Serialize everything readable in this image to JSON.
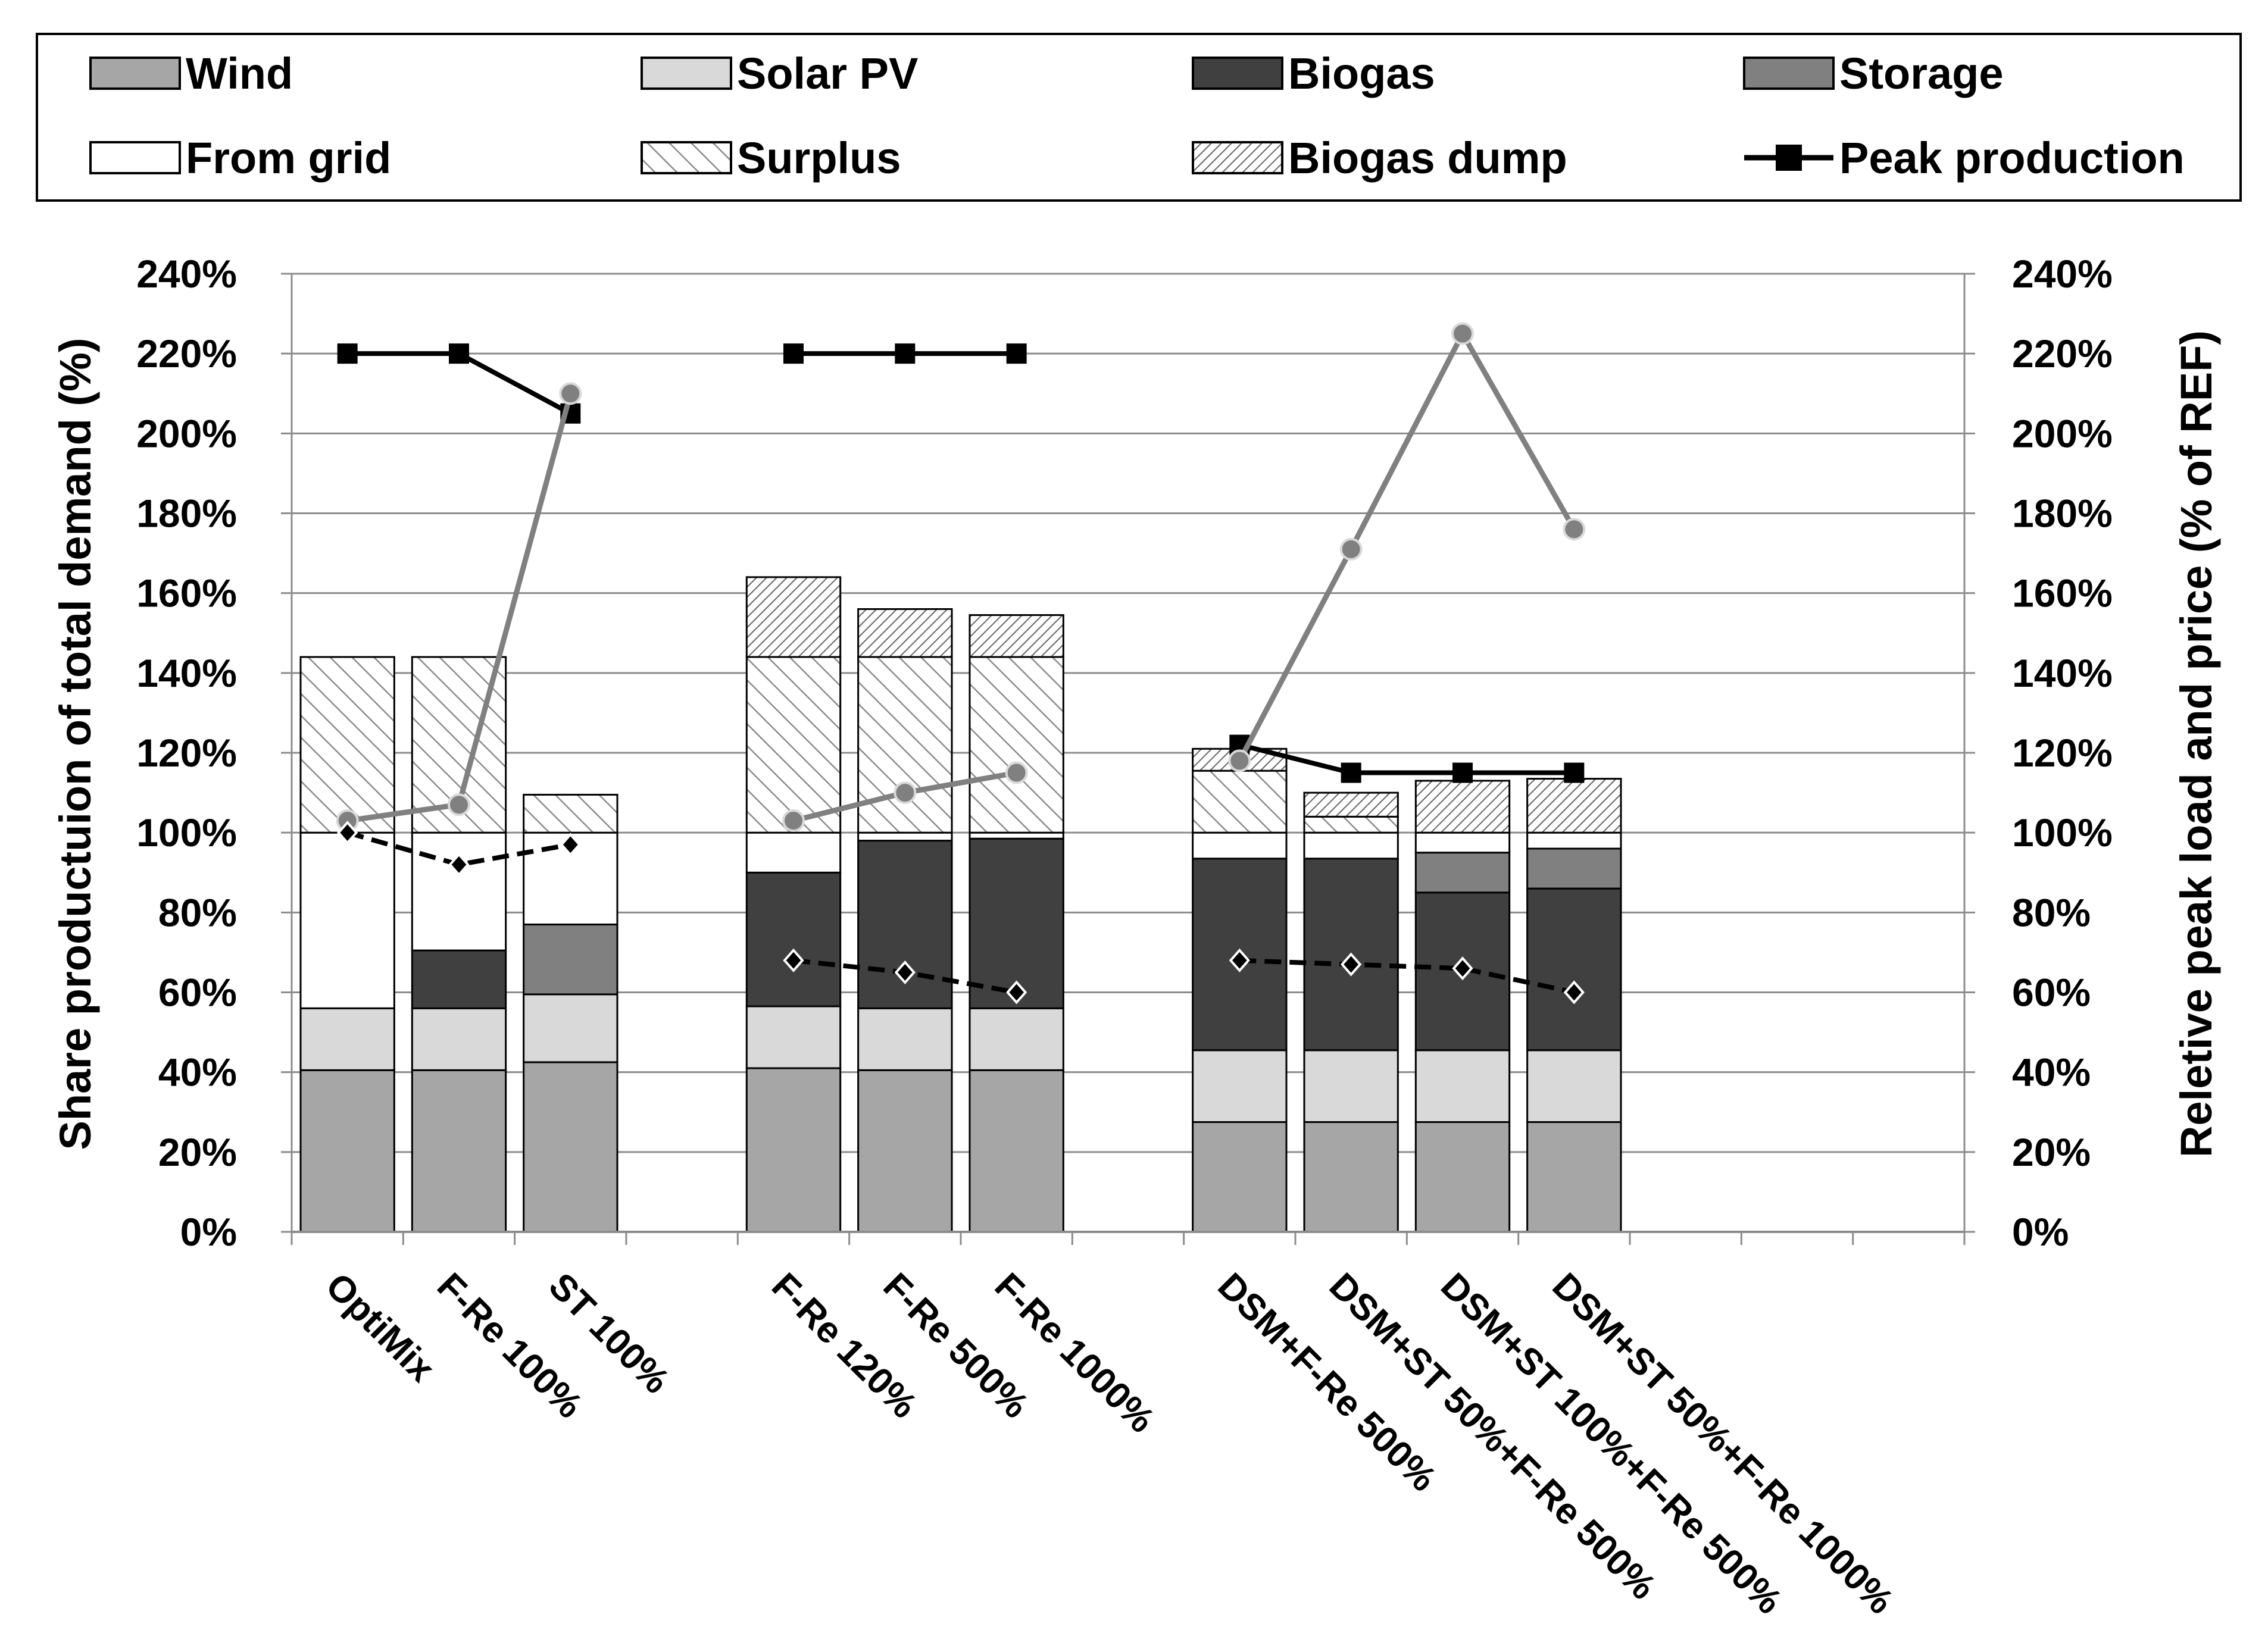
{
  "chart_data": {
    "type": "bar",
    "stacked": true,
    "groups": [
      [
        "OptiMix",
        "F-Re 100%",
        "ST 100%"
      ],
      [
        "F-Re 120%",
        "F-Re 500%",
        "F-Re 1000%"
      ],
      [
        "DSM+F-Re 500%",
        "DSM+ST 50%+F-Re 500%",
        "DSM+ST 100%+F-Re 500%",
        "DSM+ST 50%+F-Re 1000%"
      ]
    ],
    "categories": [
      "OptiMix",
      "F-Re 100%",
      "ST 100%",
      "F-Re 120%",
      "F-Re 500%",
      "F-Re 1000%",
      "DSM+F-Re 500%",
      "DSM+ST 50%+F-Re 500%",
      "DSM+ST 100%+F-Re 500%",
      "DSM+ST 50%+F-Re 1000%"
    ],
    "ylabel": "Share productuion of total demand (%)",
    "y2label": "Reletive peak load and price (% of REF)",
    "ylim": [
      0,
      240
    ],
    "y2lim": [
      0,
      240
    ],
    "yticks": [
      "0%",
      "20%",
      "40%",
      "60%",
      "80%",
      "100%",
      "120%",
      "140%",
      "160%",
      "180%",
      "200%",
      "220%",
      "240%"
    ],
    "y2ticks": [
      "0%",
      "20%",
      "40%",
      "60%",
      "80%",
      "100%",
      "120%",
      "140%",
      "160%",
      "180%",
      "200%",
      "220%",
      "240%"
    ],
    "grid": true,
    "legend_position": "top",
    "series": [
      {
        "name": "Wind",
        "kind": "bar",
        "fill": "#a6a6a6",
        "values": [
          40.5,
          40.5,
          42.5,
          41,
          40.5,
          40.5,
          27.5,
          27.5,
          27.5,
          27.5
        ]
      },
      {
        "name": "Solar PV",
        "kind": "bar",
        "fill": "#d9d9d9",
        "values": [
          15.5,
          15.5,
          17,
          15.5,
          15.5,
          15.5,
          18,
          18,
          18,
          18
        ]
      },
      {
        "name": "Biogas",
        "kind": "bar",
        "fill": "#404040",
        "values": [
          0,
          14.5,
          0,
          33.5,
          42,
          42.5,
          48,
          48,
          39.5,
          40.5
        ]
      },
      {
        "name": "Storage",
        "kind": "bar",
        "fill": "#808080",
        "values": [
          0,
          0,
          17.5,
          0,
          0,
          0,
          0,
          0,
          10,
          10
        ]
      },
      {
        "name": "From grid",
        "kind": "bar",
        "fill": "#ffffff",
        "values": [
          44,
          29.5,
          23,
          10,
          2,
          1.5,
          6.5,
          6.5,
          5,
          4
        ]
      },
      {
        "name": "Surplus",
        "kind": "bar",
        "fill": "diagonal-hatch",
        "values": [
          44,
          44,
          9.5,
          44,
          44,
          44,
          15.5,
          4,
          0,
          0
        ]
      },
      {
        "name": "Biogas dump",
        "kind": "bar",
        "fill": "dense-hatch",
        "values": [
          0,
          0,
          0,
          20,
          12,
          10.5,
          5.5,
          6,
          13,
          13.5
        ]
      },
      {
        "name": "Peak production",
        "kind": "line",
        "color": "#000000",
        "marker": "square",
        "values": [
          220,
          220,
          205,
          220,
          220,
          220,
          122,
          115,
          115,
          115
        ]
      },
      {
        "kind": "line",
        "color": "#808080",
        "marker": "circle",
        "values": [
          103,
          107,
          210,
          103,
          110,
          115,
          118,
          171,
          225,
          176
        ]
      },
      {
        "kind": "line",
        "color": "#000000",
        "dashed": true,
        "marker": "diamond",
        "values": [
          100,
          92,
          97,
          68,
          65,
          60,
          68,
          67,
          66,
          60
        ]
      }
    ]
  }
}
